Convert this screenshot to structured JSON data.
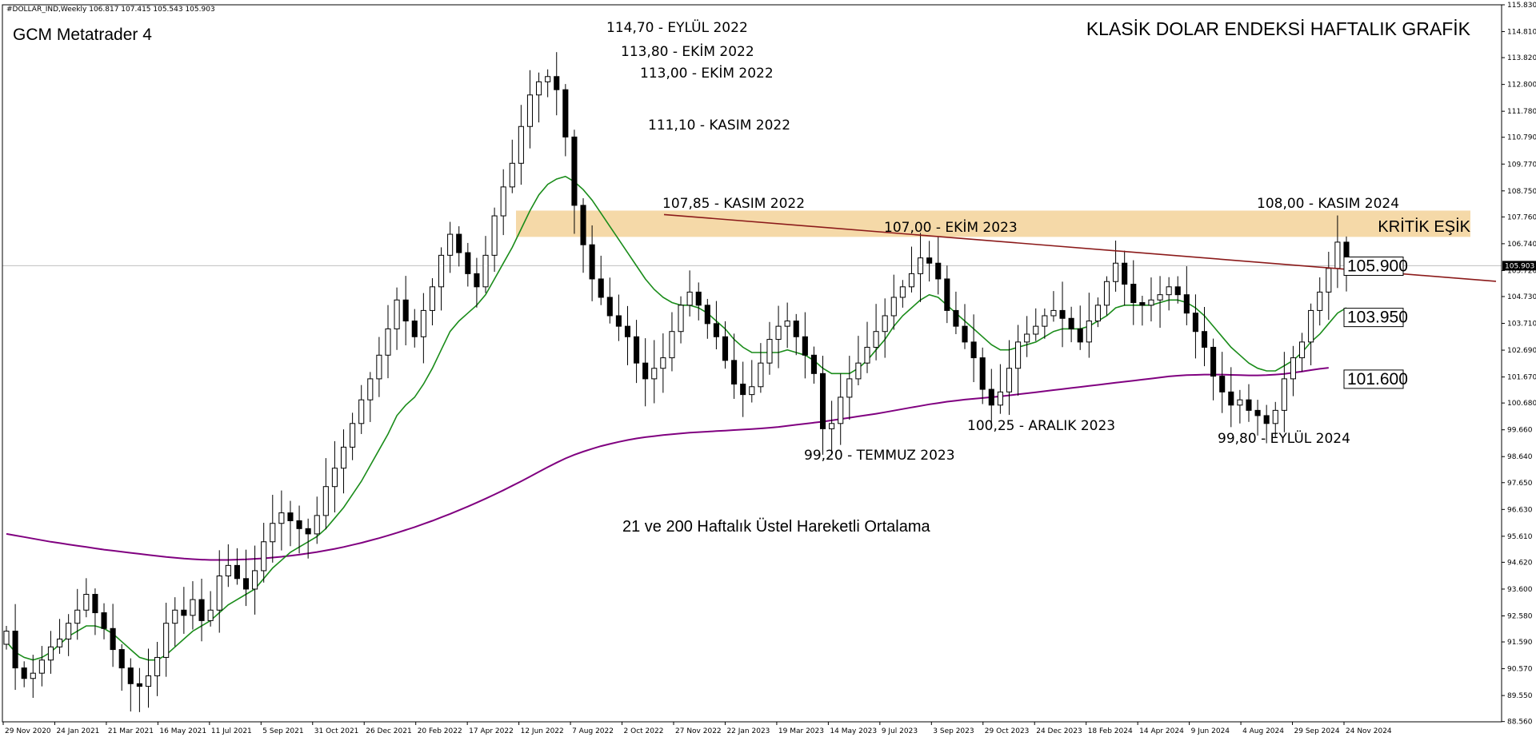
{
  "header": {
    "symbol_info": "#DOLLAR_IND,Weekly  106.817 107.415 105.543 105.903",
    "platform": "GCM Metatrader 4",
    "main_title": "KLASİK DOLAR ENDEKSİ HAFTALIK GRAFİK",
    "subtitle": "21 ve 200 Haftalık Üstel Hareketli Ortalama",
    "zone_label": "KRİTİK EŞİK"
  },
  "colors": {
    "ema21": "#1a8c1a",
    "ema200": "#800080",
    "trendline": "#8b1a1a",
    "zone": "#f5d9a8",
    "bull_body": "#ffffff",
    "bear_body": "#000000",
    "current_price_line": "#c0c0c0"
  },
  "chart_data": {
    "type": "candlestick",
    "timeframe": "Weekly",
    "ylim": [
      88.55,
      115.83
    ],
    "y_ticks": [
      "115.830",
      "114.810",
      "113.820",
      "112.800",
      "111.780",
      "110.790",
      "109.770",
      "108.750",
      "107.760",
      "106.740",
      "105.720",
      "104.730",
      "103.710",
      "102.690",
      "101.670",
      "100.680",
      "99.660",
      "98.640",
      "97.650",
      "96.630",
      "95.610",
      "94.620",
      "93.600",
      "92.580",
      "91.590",
      "90.570",
      "89.550",
      "88.560"
    ],
    "x_ticks": [
      "29 Nov 2020",
      "24 Jan 2021",
      "21 Mar 2021",
      "16 May 2021",
      "11 Jul 2021",
      "5 Sep 2021",
      "31 Oct 2021",
      "26 Dec 2021",
      "20 Feb 2022",
      "17 Apr 2022",
      "12 Jun 2022",
      "7 Aug 2022",
      "2 Oct 2022",
      "27 Nov 2022",
      "22 Jan 2023",
      "19 Mar 2023",
      "14 May 2023",
      "9 Jul 2023",
      "3 Sep 2023",
      "29 Oct 2023",
      "24 Dec 2023",
      "18 Feb 2024",
      "14 Apr 2024",
      "9 Jun 2024",
      "4 Aug 2024",
      "29 Sep 2024",
      "24 Nov 2024"
    ],
    "current_price": "105.903",
    "close_path": [
      92.0,
      90.6,
      90.2,
      90.4,
      90.9,
      91.4,
      91.7,
      92.3,
      92.8,
      93.4,
      92.7,
      92.1,
      91.3,
      90.6,
      90.0,
      89.9,
      90.3,
      91.0,
      92.3,
      92.8,
      92.6,
      93.2,
      92.4,
      92.8,
      94.1,
      94.5,
      94.0,
      93.6,
      94.3,
      95.4,
      96.1,
      96.5,
      96.2,
      95.9,
      95.7,
      96.4,
      97.5,
      98.2,
      99.0,
      99.9,
      100.8,
      101.6,
      102.5,
      103.5,
      104.6,
      103.8,
      103.2,
      104.2,
      105.1,
      106.3,
      107.1,
      106.4,
      105.6,
      105.1,
      106.3,
      107.8,
      108.9,
      109.8,
      111.2,
      112.4,
      112.9,
      113.1,
      112.6,
      110.8,
      108.2,
      106.7,
      105.4,
      104.7,
      104.0,
      103.6,
      103.2,
      102.2,
      101.6,
      102.0,
      102.4,
      103.4,
      104.4,
      104.9,
      104.4,
      103.7,
      103.2,
      102.3,
      101.4,
      101.0,
      101.3,
      102.2,
      103.1,
      103.6,
      103.8,
      103.2,
      102.5,
      101.8,
      99.7,
      99.9,
      100.9,
      101.6,
      102.2,
      102.8,
      103.4,
      104.0,
      104.7,
      105.1,
      105.6,
      106.2,
      106.0,
      105.4,
      104.2,
      103.6,
      103.0,
      102.4,
      101.2,
      100.6,
      101.1,
      102.0,
      103.0,
      103.3,
      103.6,
      104.0,
      104.2,
      103.9,
      103.5,
      103.0,
      103.8,
      104.4,
      105.3,
      106.0,
      105.2,
      104.5,
      104.4,
      104.6,
      104.8,
      105.1,
      104.8,
      104.1,
      103.4,
      102.8,
      101.7,
      101.1,
      100.6,
      100.8,
      100.4,
      100.2,
      99.9,
      100.4,
      101.6,
      102.4,
      103.0,
      104.2,
      104.9,
      105.8,
      106.8,
      105.903
    ],
    "ema21_path": [
      91.6,
      91.2,
      91.0,
      90.9,
      91.0,
      91.2,
      91.5,
      91.8,
      92.0,
      92.2,
      92.2,
      92.1,
      91.9,
      91.6,
      91.3,
      91.0,
      90.9,
      90.9,
      91.1,
      91.4,
      91.7,
      92.0,
      92.2,
      92.4,
      92.7,
      93.0,
      93.2,
      93.4,
      93.6,
      94.0,
      94.4,
      94.7,
      95.0,
      95.2,
      95.4,
      95.6,
      95.9,
      96.3,
      96.7,
      97.2,
      97.7,
      98.3,
      98.9,
      99.5,
      100.2,
      100.6,
      100.9,
      101.4,
      102.0,
      102.7,
      103.4,
      103.8,
      104.1,
      104.4,
      104.8,
      105.4,
      106.0,
      106.6,
      107.3,
      108.0,
      108.6,
      109.0,
      109.2,
      109.3,
      109.1,
      108.8,
      108.4,
      107.9,
      107.4,
      106.9,
      106.4,
      105.9,
      105.4,
      105.0,
      104.7,
      104.5,
      104.4,
      104.4,
      104.3,
      104.1,
      103.8,
      103.5,
      103.1,
      102.8,
      102.6,
      102.6,
      102.6,
      102.6,
      102.7,
      102.6,
      102.5,
      102.3,
      102.0,
      101.8,
      101.8,
      101.8,
      102.0,
      102.3,
      102.7,
      103.1,
      103.6,
      104.0,
      104.3,
      104.6,
      104.8,
      104.7,
      104.4,
      104.1,
      103.8,
      103.5,
      103.2,
      102.9,
      102.7,
      102.7,
      102.8,
      102.9,
      103.0,
      103.2,
      103.4,
      103.5,
      103.5,
      103.5,
      103.6,
      103.8,
      104.0,
      104.3,
      104.4,
      104.4,
      104.4,
      104.4,
      104.5,
      104.6,
      104.6,
      104.5,
      104.3,
      104.0,
      103.6,
      103.2,
      102.8,
      102.5,
      102.2,
      102.0,
      101.9,
      101.9,
      102.1,
      102.3,
      102.6,
      103.0,
      103.3,
      103.7,
      104.1,
      104.3
    ],
    "ema200_path": [
      95.7,
      95.64,
      95.58,
      95.52,
      95.46,
      95.4,
      95.35,
      95.3,
      95.25,
      95.2,
      95.15,
      95.1,
      95.06,
      95.02,
      94.98,
      94.94,
      94.9,
      94.86,
      94.82,
      94.79,
      94.76,
      94.74,
      94.72,
      94.71,
      94.71,
      94.71,
      94.72,
      94.73,
      94.75,
      94.77,
      94.8,
      94.83,
      94.87,
      94.91,
      94.96,
      95.01,
      95.07,
      95.13,
      95.2,
      95.28,
      95.36,
      95.45,
      95.54,
      95.64,
      95.74,
      95.85,
      95.96,
      96.08,
      96.2,
      96.33,
      96.46,
      96.6,
      96.74,
      96.89,
      97.04,
      97.2,
      97.36,
      97.53,
      97.7,
      97.88,
      98.06,
      98.24,
      98.41,
      98.57,
      98.71,
      98.83,
      98.94,
      99.04,
      99.12,
      99.2,
      99.27,
      99.33,
      99.38,
      99.42,
      99.46,
      99.49,
      99.52,
      99.55,
      99.57,
      99.59,
      99.61,
      99.63,
      99.65,
      99.67,
      99.69,
      99.71,
      99.74,
      99.77,
      99.81,
      99.85,
      99.89,
      99.93,
      99.97,
      100.02,
      100.07,
      100.12,
      100.17,
      100.22,
      100.27,
      100.33,
      100.39,
      100.45,
      100.51,
      100.57,
      100.63,
      100.68,
      100.73,
      100.77,
      100.81,
      100.84,
      100.87,
      100.9,
      100.93,
      100.97,
      101.01,
      101.05,
      101.09,
      101.13,
      101.17,
      101.21,
      101.25,
      101.29,
      101.33,
      101.37,
      101.41,
      101.45,
      101.49,
      101.53,
      101.57,
      101.61,
      101.65,
      101.69,
      101.72,
      101.74,
      101.75,
      101.76,
      101.76,
      101.76,
      101.75,
      101.74,
      101.73,
      101.73,
      101.74,
      101.76,
      101.79,
      101.83,
      101.88,
      101.93,
      101.98,
      102.02
    ],
    "trendline": {
      "from_date": "Nov 2022",
      "from_value": 107.85,
      "to_value": 105.4
    },
    "zone": {
      "label": "KRİTİK EŞİK",
      "low": 107.0,
      "high": 108.0
    },
    "price_labels": [
      {
        "text": "105.900",
        "value": 105.9
      },
      {
        "text": "103.950",
        "value": 103.95
      },
      {
        "text": "101.600",
        "value": 101.6
      }
    ],
    "annotations": [
      {
        "text": "114,70 - EYLÜL 2022",
        "value": 114.7
      },
      {
        "text": "113,80 - EKİM 2022",
        "value": 113.8
      },
      {
        "text": "113,00 - EKİM 2022",
        "value": 113.0
      },
      {
        "text": "111,10 - KASIM 2022",
        "value": 111.1
      },
      {
        "text": "107,85 - KASIM 2022",
        "value": 107.85
      },
      {
        "text": "107,00 - EKİM 2023",
        "value": 107.0
      },
      {
        "text": "108,00 - KASIM 2024",
        "value": 108.0
      },
      {
        "text": "99,20 - TEMMUZ 2023",
        "value": 99.2
      },
      {
        "text": "100,25 - ARALIK 2023",
        "value": 100.25
      },
      {
        "text": "99,80 - EYLÜL 2024",
        "value": 99.8
      }
    ]
  }
}
